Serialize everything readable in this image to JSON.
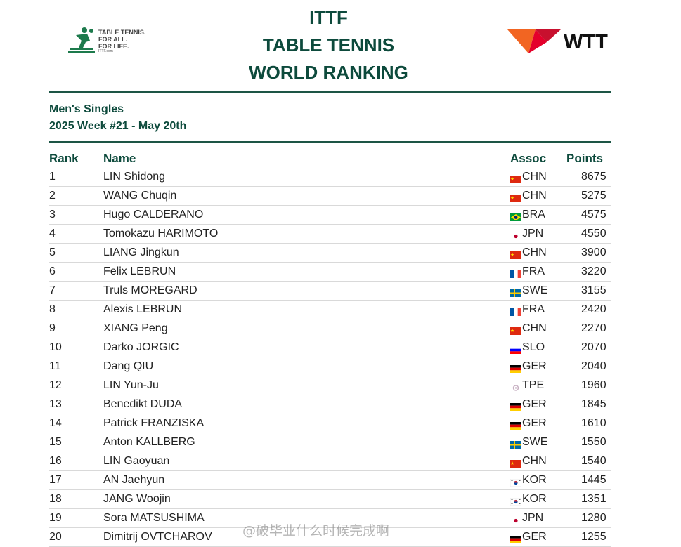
{
  "header": {
    "title_lines": [
      "ITTF",
      "TABLE TENNIS",
      "WORLD RANKING"
    ],
    "ittf_logo": {
      "icon": "table-tennis-player-icon",
      "tagline_lines": [
        "TABLE TENNIS.",
        "FOR ALL.",
        "FOR LIFE."
      ],
      "url": "ITTF.com"
    },
    "wtt_logo": {
      "icon": "wtt-chevron-icon",
      "text": "WTT"
    }
  },
  "subheading": {
    "category": "Men's Singles",
    "week": "2025 Week #21 - May 20th"
  },
  "table": {
    "columns": {
      "rank": "Rank",
      "name": "Name",
      "assoc": "Assoc",
      "points": "Points"
    },
    "rows": [
      {
        "rank": "1",
        "name": "LIN Shidong",
        "assoc": "CHN",
        "points": "8675"
      },
      {
        "rank": "2",
        "name": "WANG Chuqin",
        "assoc": "CHN",
        "points": "5275"
      },
      {
        "rank": "3",
        "name": "Hugo CALDERANO",
        "assoc": "BRA",
        "points": "4575"
      },
      {
        "rank": "4",
        "name": "Tomokazu HARIMOTO",
        "assoc": "JPN",
        "points": "4550"
      },
      {
        "rank": "5",
        "name": "LIANG Jingkun",
        "assoc": "CHN",
        "points": "3900"
      },
      {
        "rank": "6",
        "name": "Felix LEBRUN",
        "assoc": "FRA",
        "points": "3220"
      },
      {
        "rank": "7",
        "name": "Truls MOREGARD",
        "assoc": "SWE",
        "points": "3155"
      },
      {
        "rank": "8",
        "name": "Alexis LEBRUN",
        "assoc": "FRA",
        "points": "2420"
      },
      {
        "rank": "9",
        "name": "XIANG Peng",
        "assoc": "CHN",
        "points": "2270"
      },
      {
        "rank": "10",
        "name": "Darko JORGIC",
        "assoc": "SLO",
        "points": "2070"
      },
      {
        "rank": "11",
        "name": "Dang QIU",
        "assoc": "GER",
        "points": "2040"
      },
      {
        "rank": "12",
        "name": "LIN Yun-Ju",
        "assoc": "TPE",
        "points": "1960"
      },
      {
        "rank": "13",
        "name": "Benedikt DUDA",
        "assoc": "GER",
        "points": "1845"
      },
      {
        "rank": "14",
        "name": "Patrick FRANZISKA",
        "assoc": "GER",
        "points": "1610"
      },
      {
        "rank": "15",
        "name": "Anton KALLBERG",
        "assoc": "SWE",
        "points": "1550"
      },
      {
        "rank": "16",
        "name": "LIN Gaoyuan",
        "assoc": "CHN",
        "points": "1540"
      },
      {
        "rank": "17",
        "name": "AN Jaehyun",
        "assoc": "KOR",
        "points": "1445"
      },
      {
        "rank": "18",
        "name": "JANG Woojin",
        "assoc": "KOR",
        "points": "1351"
      },
      {
        "rank": "19",
        "name": "Sora MATSUSHIMA",
        "assoc": "JPN",
        "points": "1280"
      },
      {
        "rank": "20",
        "name": "Dimitrij OVTCHAROV",
        "assoc": "GER",
        "points": "1255"
      }
    ]
  },
  "flag_colors": {
    "CHN": {
      "bg": "#de2910",
      "accent": "#ffde00"
    },
    "BRA": {
      "bg": "#009b3a",
      "accent": "#fedf00",
      "inner": "#002776"
    },
    "JPN": {
      "bg": "#ffffff",
      "accent": "#bc002d"
    },
    "FRA": {
      "stripes": [
        "#0055a4",
        "#ffffff",
        "#ef4135"
      ]
    },
    "SWE": {
      "bg": "#006aa7",
      "accent": "#fecc00"
    },
    "SLO": {
      "stripes_h": [
        "#ffffff",
        "#0000ff",
        "#ff0000"
      ]
    },
    "GER": {
      "stripes_h": [
        "#000000",
        "#dd0000",
        "#ffce00"
      ]
    },
    "TPE": {
      "bg": "#ffffff",
      "accent": "#c7b0c2"
    },
    "KOR": {
      "bg": "#ffffff",
      "accent": "#cd2e3a",
      "inner": "#0047a0"
    }
  },
  "watermark": "@破毕业什么时候完成啊"
}
